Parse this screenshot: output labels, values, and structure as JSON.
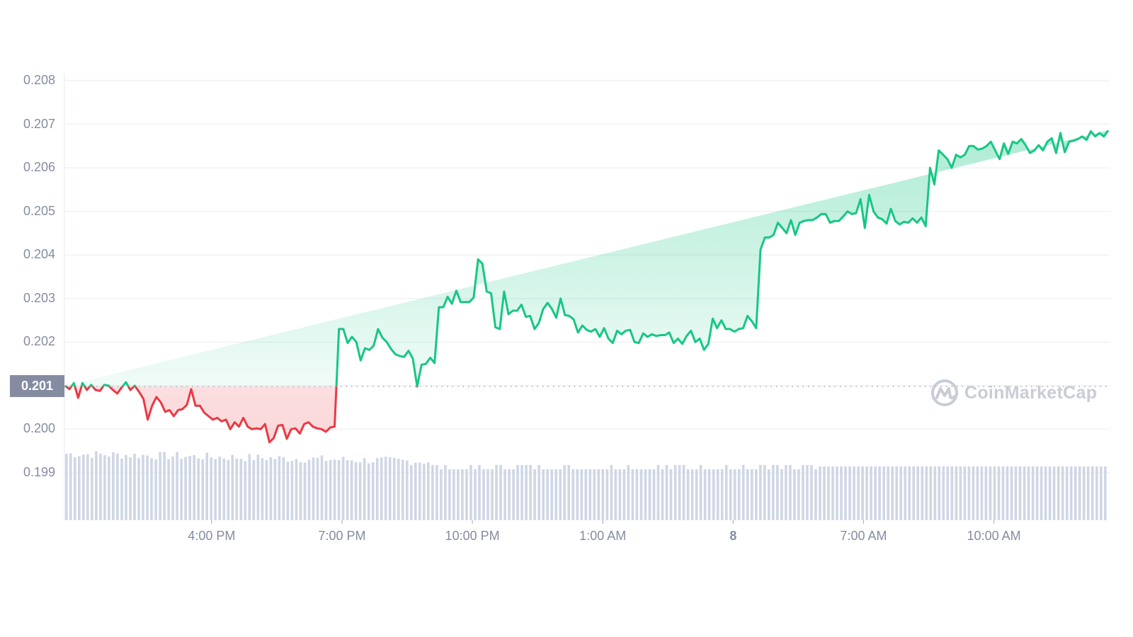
{
  "watermark": {
    "brand": "CoinMarketCap",
    "icon": "coinmarketcap-logo-icon"
  },
  "current_price_label": "0.201",
  "colors": {
    "up_line": "#16c784",
    "down_line": "#ea3943",
    "axis_text": "#858ca2",
    "grid": "#eff2f5",
    "volume_bar": "#cfd6e4",
    "badge_bg": "#858ca2",
    "watermark": "#c9ccd6"
  },
  "y_ticks": [
    "0.208",
    "0.207",
    "0.206",
    "0.205",
    "0.204",
    "0.203",
    "0.202",
    "0.200",
    "0.199"
  ],
  "x_ticks": [
    {
      "label": "4:00 PM",
      "bold": false
    },
    {
      "label": "7:00 PM",
      "bold": false
    },
    {
      "label": "10:00 PM",
      "bold": false
    },
    {
      "label": "1:00 AM",
      "bold": false
    },
    {
      "label": "8",
      "bold": true
    },
    {
      "label": "7:00 AM",
      "bold": false
    },
    {
      "label": "10:00 AM",
      "bold": false
    }
  ],
  "chart_data": {
    "type": "line",
    "title": "",
    "xlabel": "",
    "ylabel": "",
    "ylim": [
      0.199,
      0.208
    ],
    "reference_price": 0.20098,
    "grid": true,
    "x_tick_labels": [
      "4:00 PM",
      "7:00 PM",
      "10:00 PM",
      "1:00 AM",
      "8",
      "7:00 AM",
      "10:00 AM"
    ],
    "y_tick_labels": [
      "0.199",
      "0.200",
      "0.201",
      "0.202",
      "0.203",
      "0.204",
      "0.205",
      "0.206",
      "0.207",
      "0.208"
    ],
    "x_hours_from_start": [
      0.0,
      0.1,
      0.2,
      0.3,
      0.4,
      0.5,
      0.6,
      0.7,
      0.8,
      0.9,
      1.0,
      1.1,
      1.2,
      1.3,
      1.4,
      1.5,
      1.6,
      1.7,
      1.8,
      1.9,
      2.0,
      2.1,
      2.2,
      2.3,
      2.4,
      2.5,
      2.6,
      2.7,
      2.8,
      2.9,
      3.0,
      3.1,
      3.2,
      3.3,
      3.4,
      3.5,
      3.6,
      3.7,
      3.8,
      3.9,
      4.0,
      4.1,
      4.2,
      4.3,
      4.4,
      4.5,
      4.6,
      4.7,
      4.8,
      4.9,
      5.0,
      5.1,
      5.2,
      5.3,
      5.4,
      5.5,
      5.6,
      5.7,
      5.8,
      5.9,
      6.0,
      6.1,
      6.2,
      6.3,
      6.4,
      6.5,
      6.6,
      6.7,
      6.8,
      6.9,
      7.0,
      7.1,
      7.2,
      7.3,
      7.4,
      7.5,
      7.6,
      7.7,
      7.8,
      7.9,
      8.0,
      8.1,
      8.2,
      8.3,
      8.4,
      8.5,
      8.6,
      8.7,
      8.8,
      8.9,
      9.0,
      9.1,
      9.2,
      9.3,
      9.4,
      9.5,
      9.6,
      9.7,
      9.8,
      9.9,
      10.0,
      10.1,
      10.2,
      10.3,
      10.4,
      10.5,
      10.6,
      10.7,
      10.8,
      10.9,
      11.0,
      11.1,
      11.2,
      11.3,
      11.4,
      11.5,
      11.6,
      11.7,
      11.8,
      11.9,
      12.0,
      12.1,
      12.2,
      12.3,
      12.4,
      12.5,
      12.6,
      12.7,
      12.8,
      12.9,
      13.0,
      13.1,
      13.2,
      13.3,
      13.4,
      13.5,
      13.6,
      13.7,
      13.8,
      13.9,
      14.0,
      14.1,
      14.2,
      14.3,
      14.4,
      14.5,
      14.6,
      14.7,
      14.8,
      14.9,
      15.0,
      15.1,
      15.2,
      15.3,
      15.4,
      15.5,
      15.6,
      15.7,
      15.8,
      15.9,
      16.0,
      16.1,
      16.2,
      16.3,
      16.4,
      16.5,
      16.6,
      16.7,
      16.8,
      16.9,
      17.0,
      17.1,
      17.2,
      17.3,
      17.4,
      17.5,
      17.6,
      17.7,
      17.8,
      17.9,
      18.0,
      18.1,
      18.2,
      18.3,
      18.4,
      18.5,
      18.6,
      18.7,
      18.8,
      18.9,
      19.0,
      19.1,
      19.2,
      19.3,
      19.4,
      19.5,
      19.6,
      19.7,
      19.8,
      19.9,
      20.0,
      20.1,
      20.2,
      20.3,
      20.4,
      20.5,
      20.6,
      20.7,
      20.8,
      20.9,
      21.0,
      21.1,
      21.2,
      21.3,
      21.4,
      21.5,
      21.6,
      21.7,
      21.8,
      21.9,
      22.0,
      22.1,
      22.2,
      22.3,
      22.4,
      22.5,
      22.6,
      22.7,
      22.8,
      22.9,
      23.0,
      23.1,
      23.2,
      23.3,
      23.4,
      23.5,
      23.6,
      23.7,
      23.8,
      23.9,
      24.0
    ],
    "series": [
      {
        "name": "Price",
        "values": [
          0.201,
          0.20092,
          0.20106,
          0.20072,
          0.20106,
          0.2009,
          0.20102,
          0.2009,
          0.20088,
          0.20102,
          0.201,
          0.2009,
          0.20082,
          0.20096,
          0.20108,
          0.2009,
          0.201,
          0.20086,
          0.2007,
          0.20022,
          0.20054,
          0.20074,
          0.20062,
          0.2004,
          0.20044,
          0.2003,
          0.20044,
          0.20046,
          0.20056,
          0.20092,
          0.20054,
          0.20054,
          0.20038,
          0.2003,
          0.20022,
          0.20026,
          0.20018,
          0.20022,
          0.2,
          0.20016,
          0.20006,
          0.20026,
          0.20006,
          0.2,
          0.20002,
          0.2,
          0.20012,
          0.1997,
          0.1998,
          0.20008,
          0.2001,
          0.19978,
          0.2,
          0.20002,
          0.1999,
          0.20012,
          0.20016,
          0.20006,
          0.20002,
          0.2,
          0.19994,
          0.20004,
          0.20006,
          0.2023,
          0.2023,
          0.20198,
          0.20212,
          0.202,
          0.20158,
          0.20186,
          0.20182,
          0.20192,
          0.2023,
          0.2021,
          0.202,
          0.20184,
          0.20172,
          0.20168,
          0.20166,
          0.2018,
          0.20162,
          0.20098,
          0.20148,
          0.2015,
          0.20164,
          0.20152,
          0.2028,
          0.2028,
          0.20304,
          0.20288,
          0.20318,
          0.20292,
          0.20292,
          0.20292,
          0.20302,
          0.2039,
          0.2038,
          0.20316,
          0.20312,
          0.20234,
          0.2023,
          0.20316,
          0.20264,
          0.20272,
          0.20272,
          0.20286,
          0.20258,
          0.2026,
          0.2023,
          0.20244,
          0.20276,
          0.2029,
          0.20276,
          0.20256,
          0.203,
          0.20262,
          0.2026,
          0.20252,
          0.20222,
          0.20238,
          0.20228,
          0.20224,
          0.2023,
          0.20212,
          0.20232,
          0.20208,
          0.20198,
          0.20226,
          0.20218,
          0.20226,
          0.20228,
          0.202,
          0.20198,
          0.2022,
          0.20212,
          0.20218,
          0.20214,
          0.20216,
          0.20216,
          0.20222,
          0.20198,
          0.20208,
          0.20196,
          0.20214,
          0.20226,
          0.202,
          0.20208,
          0.20182,
          0.20196,
          0.20254,
          0.20232,
          0.2025,
          0.2023,
          0.2023,
          0.20224,
          0.2023,
          0.20232,
          0.2026,
          0.20248,
          0.20232,
          0.20412,
          0.2044,
          0.2044,
          0.20446,
          0.20474,
          0.20462,
          0.2045,
          0.2048,
          0.20446,
          0.20474,
          0.20478,
          0.2048,
          0.2048,
          0.20486,
          0.20494,
          0.20494,
          0.20474,
          0.20478,
          0.20478,
          0.20488,
          0.205,
          0.20494,
          0.20496,
          0.20528,
          0.20462,
          0.20538,
          0.205,
          0.20486,
          0.20482,
          0.20472,
          0.20506,
          0.20478,
          0.2047,
          0.20476,
          0.20474,
          0.20484,
          0.20474,
          0.20486,
          0.20466,
          0.206,
          0.20562,
          0.2064,
          0.2063,
          0.2062,
          0.206,
          0.2063,
          0.20624,
          0.2063,
          0.2065,
          0.2065,
          0.20642,
          0.20644,
          0.2065,
          0.2066,
          0.2064,
          0.2062,
          0.20656,
          0.20632,
          0.2066,
          0.20656,
          0.20666,
          0.20652,
          0.20634,
          0.2064,
          0.20652,
          0.2064,
          0.2066,
          0.20668,
          0.20634,
          0.2068,
          0.20636,
          0.2066,
          0.20662,
          0.20666,
          0.20672,
          0.20664,
          0.20684,
          0.20672,
          0.2068,
          0.20672,
          0.20686,
          0.2067,
          0.20684,
          0.2069,
          0.20684,
          0.20674,
          0.2064,
          0.20696
        ]
      }
    ],
    "volume_bars_relative": "approximately uniform grey bars under price, slightly taller at left (~95px) tapering to ~75px at right"
  }
}
